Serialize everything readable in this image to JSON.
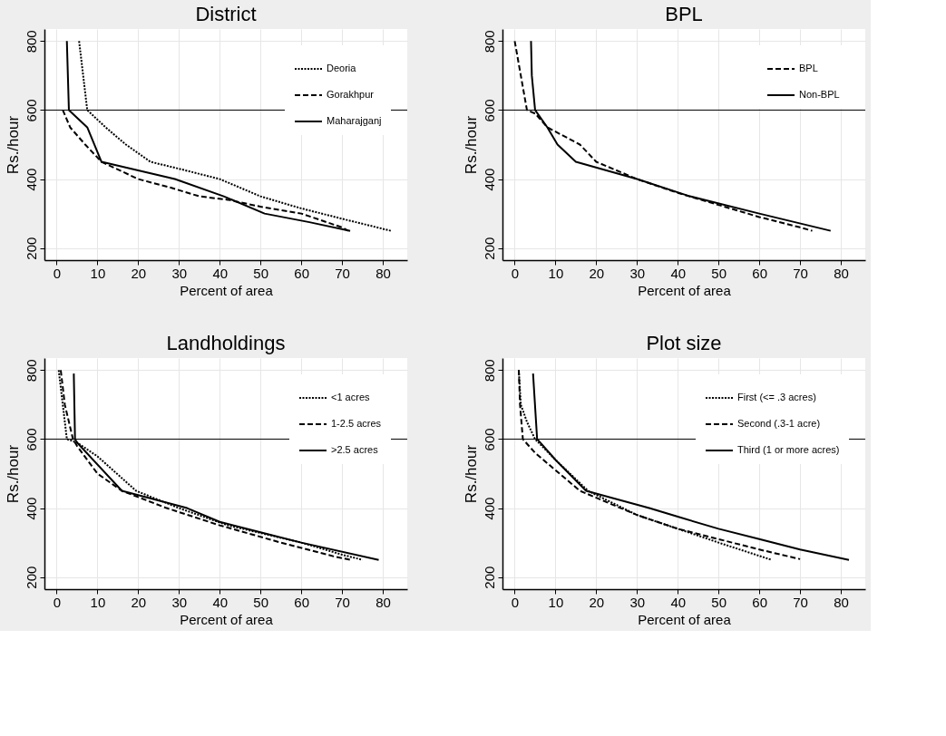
{
  "chart_data": [
    {
      "type": "line",
      "title": "District",
      "xlabel": "Percent of area",
      "ylabel": "Rs./hour",
      "xlim": [
        -3,
        86
      ],
      "ylim": [
        165,
        835
      ],
      "xticks": [
        0,
        10,
        20,
        30,
        40,
        50,
        60,
        70,
        80
      ],
      "yticks": [
        200,
        400,
        600,
        800
      ],
      "grid": true,
      "legend": "top right",
      "marker": "none",
      "ref_lines": [
        {
          "axis": "y",
          "value": 600,
          "color": "#000000"
        }
      ],
      "series": [
        {
          "name": "Deoria",
          "color": "#000000",
          "line_style": "dotted",
          "x": [
            5.5,
            7.5,
            12,
            17,
            23,
            30,
            40,
            50,
            60,
            70,
            82
          ],
          "values": [
            800,
            600,
            550,
            500,
            450,
            430,
            400,
            350,
            315,
            285,
            250
          ]
        },
        {
          "name": "Gorakhpur",
          "color": "#000000",
          "line_style": "dashed",
          "x": [
            1.5,
            3.3,
            7,
            11,
            20,
            28,
            35,
            42,
            50,
            60,
            70,
            71.5
          ],
          "values": [
            600,
            550,
            500,
            450,
            400,
            375,
            350,
            340,
            320,
            300,
            260,
            250
          ]
        },
        {
          "name": "Maharajganj",
          "color": "#000000",
          "line_style": "solid",
          "x": [
            2.5,
            3,
            7.5,
            11,
            29,
            41,
            51,
            62,
            72
          ],
          "values": [
            800,
            600,
            550,
            450,
            400,
            350,
            300,
            275,
            250
          ]
        }
      ]
    },
    {
      "type": "line",
      "title": "BPL",
      "xlabel": "Percent of area",
      "ylabel": "Rs./hour",
      "xlim": [
        -3,
        86
      ],
      "ylim": [
        165,
        835
      ],
      "xticks": [
        0,
        10,
        20,
        30,
        40,
        50,
        60,
        70,
        80
      ],
      "yticks": [
        200,
        400,
        600,
        800
      ],
      "grid": true,
      "legend": "top right",
      "marker": "none",
      "ref_lines": [
        {
          "axis": "y",
          "value": 600,
          "color": "#000000"
        }
      ],
      "series": [
        {
          "name": "BPL",
          "color": "#000000",
          "line_style": "dashed",
          "x": [
            0,
            1.5,
            3,
            5,
            8,
            16,
            20,
            30,
            40,
            50,
            60,
            70,
            73
          ],
          "values": [
            800,
            700,
            600,
            590,
            550,
            500,
            450,
            400,
            360,
            325,
            290,
            260,
            250
          ]
        },
        {
          "name": "Non-BPL",
          "color": "#000000",
          "line_style": "solid",
          "x": [
            4,
            4.2,
            5,
            8,
            10.5,
            15,
            30,
            43,
            60,
            77.5
          ],
          "values": [
            800,
            700,
            600,
            550,
            500,
            450,
            400,
            350,
            300,
            250
          ]
        }
      ]
    },
    {
      "type": "line",
      "title": "Landholdings",
      "xlabel": "Percent of area",
      "ylabel": "Rs./hour",
      "xlim": [
        -3,
        86
      ],
      "ylim": [
        165,
        835
      ],
      "xticks": [
        0,
        10,
        20,
        30,
        40,
        50,
        60,
        70,
        80
      ],
      "yticks": [
        200,
        400,
        600,
        800
      ],
      "grid": true,
      "legend": "top right",
      "marker": "none",
      "ref_lines": [
        {
          "axis": "y",
          "value": 600,
          "color": "#000000"
        }
      ],
      "series": [
        {
          "name": "<1 acres",
          "color": "#000000",
          "line_style": "dotted",
          "x": [
            0.5,
            1.5,
            2.5,
            5,
            10,
            19.5,
            30,
            42,
            60,
            70,
            75
          ],
          "values": [
            800,
            700,
            600,
            590,
            550,
            450,
            400,
            350,
            300,
            265,
            250
          ]
        },
        {
          "name": "1-2.5 acres",
          "color": "#000000",
          "line_style": "dashed",
          "x": [
            1,
            2,
            4,
            5,
            10,
            16,
            27,
            40,
            55,
            68,
            72
          ],
          "values": [
            800,
            700,
            600,
            580,
            500,
            450,
            400,
            350,
            300,
            260,
            250
          ]
        },
        {
          "name": ">2.5 acres",
          "color": "#000000",
          "line_style": "solid",
          "x": [
            4.2,
            4.5,
            5,
            16,
            32,
            40,
            50,
            60,
            79
          ],
          "values": [
            790,
            600,
            590,
            450,
            400,
            360,
            330,
            300,
            250
          ]
        }
      ]
    },
    {
      "type": "line",
      "title": "Plot size",
      "xlabel": "Percent of area",
      "ylabel": "Rs./hour",
      "xlim": [
        -3,
        86
      ],
      "ylim": [
        165,
        835
      ],
      "xticks": [
        0,
        10,
        20,
        30,
        40,
        50,
        60,
        70,
        80
      ],
      "yticks": [
        200,
        400,
        600,
        800
      ],
      "grid": true,
      "legend": "top right",
      "marker": "none",
      "ref_lines": [
        {
          "axis": "y",
          "value": 600,
          "color": "#000000"
        }
      ],
      "series": [
        {
          "name": "First (<= .3 acres)",
          "color": "#000000",
          "line_style": "dotted",
          "x": [
            1,
            1.5,
            3,
            5,
            10,
            18,
            30,
            40,
            50,
            63
          ],
          "values": [
            800,
            700,
            650,
            600,
            540,
            450,
            380,
            340,
            300,
            250
          ]
        },
        {
          "name": "Second (.3-1 acre)",
          "color": "#000000",
          "line_style": "dashed",
          "x": [
            1,
            1.3,
            2,
            5,
            10,
            16,
            20,
            30,
            40,
            50,
            60,
            70
          ],
          "values": [
            800,
            700,
            600,
            560,
            510,
            450,
            430,
            380,
            340,
            310,
            280,
            252
          ]
        },
        {
          "name": "Third (1 or more acres)",
          "color": "#000000",
          "line_style": "solid",
          "x": [
            4.5,
            5.5,
            10,
            17.5,
            33,
            40,
            50,
            60,
            70,
            82
          ],
          "values": [
            790,
            600,
            540,
            450,
            400,
            375,
            340,
            310,
            280,
            250
          ]
        }
      ]
    }
  ]
}
